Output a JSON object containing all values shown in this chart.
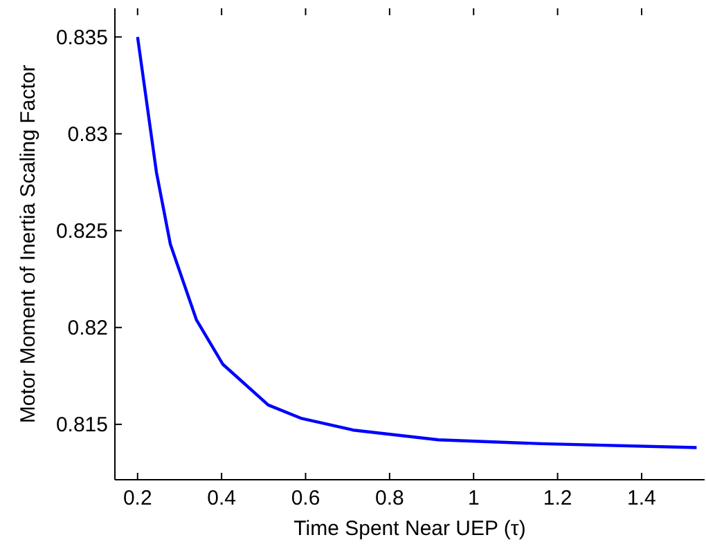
{
  "chart_data": {
    "type": "line",
    "xlabel": "Time Spent Near UEP (τ)",
    "ylabel": "Motor Moment of Inertia Scaling Factor",
    "x": [
      0.2,
      0.245,
      0.278,
      0.34,
      0.403,
      0.511,
      0.591,
      0.714,
      0.916,
      1.162,
      1.531
    ],
    "series": [
      {
        "color": "#0000ff",
        "values": [
          0.835,
          0.828,
          0.8243,
          0.8204,
          0.8181,
          0.816,
          0.8153,
          0.8147,
          0.8142,
          0.814,
          0.8138
        ]
      }
    ],
    "xlim": [
      0.146,
      1.55
    ],
    "xticks": [
      0.2,
      0.4,
      0.6,
      0.8,
      1,
      1.2,
      1.4
    ],
    "ylim": [
      0.81214,
      0.83648
    ],
    "yticks": [
      0.815,
      0.82,
      0.825,
      0.83,
      0.835
    ],
    "grid": false,
    "marker": "none",
    "line_style": "solid"
  }
}
